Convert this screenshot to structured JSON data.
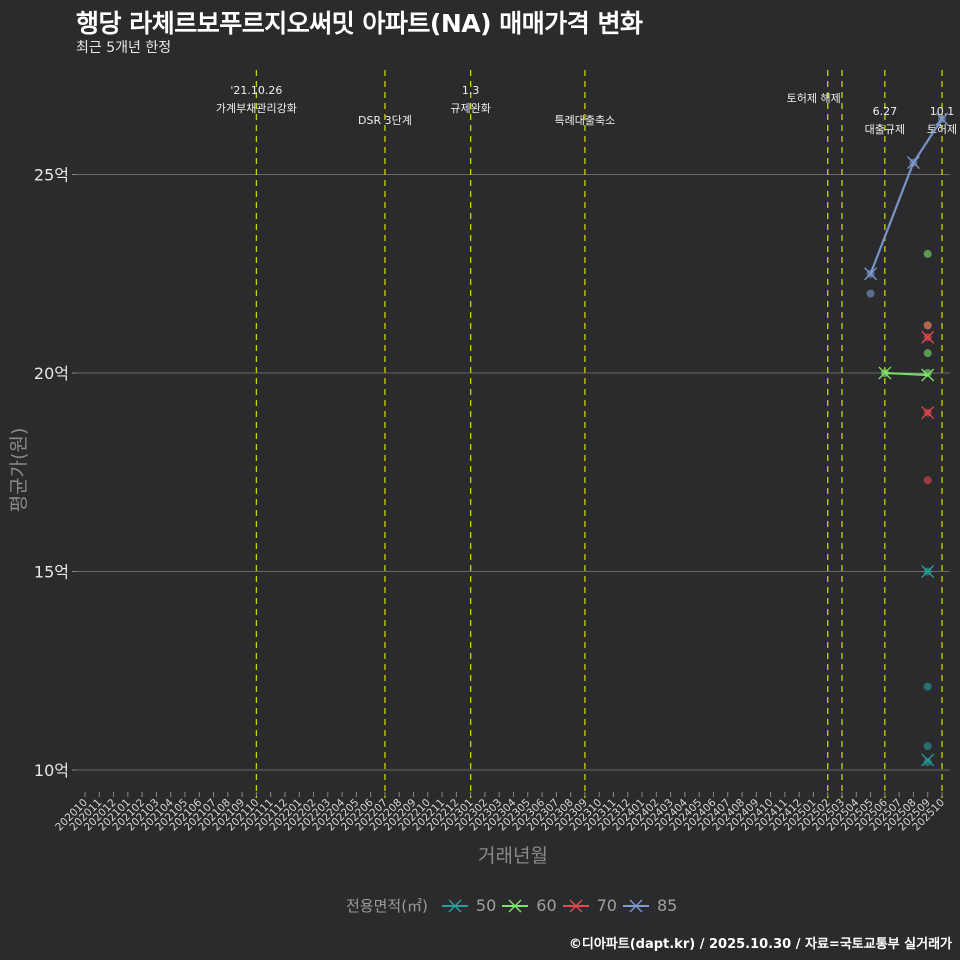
{
  "header": {
    "title": "행당 라체르보푸르지오써밋 아파트(NA) 매매가격 변화",
    "subtitle": "최근 5개년 한정"
  },
  "axes": {
    "ylabel": "평균가(원)",
    "xlabel": "거래년월"
  },
  "legend": {
    "title": "전용면적(㎡)",
    "items": [
      {
        "label": "50",
        "color": "#2a9d9a"
      },
      {
        "label": "60",
        "color": "#7de36a"
      },
      {
        "label": "70",
        "color": "#e8474f"
      },
      {
        "label": "85",
        "color": "#7b9ad0"
      }
    ]
  },
  "footer": {
    "credit": "©디아파트(dapt.kr) / 2025.10.30 / 자료=국토교통부 실거래가"
  },
  "chart_data": {
    "type": "line",
    "title": "행당 라체르보푸르지오써밋 아파트(NA) 매매가격 변화",
    "subtitle": "최근 5개년 한정",
    "xlabel": "거래년월",
    "ylabel": "평균가(원)",
    "ylim": [
      9.4,
      27.0
    ],
    "yticks": [
      10,
      15,
      20,
      25
    ],
    "ytick_labels": [
      "10억",
      "15억",
      "20억",
      "25억"
    ],
    "grid": true,
    "legend_position": "bottom",
    "x": [
      "202010",
      "202011",
      "202012",
      "202101",
      "202102",
      "202103",
      "202104",
      "202105",
      "202106",
      "202107",
      "202108",
      "202109",
      "202110",
      "202111",
      "202112",
      "202201",
      "202202",
      "202203",
      "202204",
      "202205",
      "202206",
      "202207",
      "202208",
      "202209",
      "202210",
      "202211",
      "202212",
      "202301",
      "202302",
      "202303",
      "202304",
      "202305",
      "202306",
      "202307",
      "202308",
      "202309",
      "202310",
      "202311",
      "202312",
      "202401",
      "202402",
      "202403",
      "202404",
      "202405",
      "202406",
      "202407",
      "202408",
      "202409",
      "202410",
      "202411",
      "202412",
      "202501",
      "202502",
      "202503",
      "202504",
      "202505",
      "202506",
      "202507",
      "202508",
      "202509",
      "202510"
    ],
    "series": [
      {
        "name": "50",
        "color": "#2a9d9a",
        "mean": [
          {
            "x": "202509",
            "y": 15.0
          },
          {
            "x": "202509",
            "y": 10.25
          }
        ],
        "points": [
          {
            "x": "202509",
            "y": 15.0
          },
          {
            "x": "202509",
            "y": 12.1
          },
          {
            "x": "202509",
            "y": 10.6
          },
          {
            "x": "202509",
            "y": 10.2
          }
        ]
      },
      {
        "name": "60",
        "color": "#7de36a",
        "mean": [
          {
            "x": "202506",
            "y": 20.0
          },
          {
            "x": "202509",
            "y": 19.95
          }
        ],
        "points": [
          {
            "x": "202506",
            "y": 20.0
          },
          {
            "x": "202509",
            "y": 23.0
          },
          {
            "x": "202509",
            "y": 21.2
          },
          {
            "x": "202509",
            "y": 20.5
          },
          {
            "x": "202509",
            "y": 20.0
          }
        ]
      },
      {
        "name": "70",
        "color": "#e8474f",
        "mean": [
          {
            "x": "202509",
            "y": 20.9
          },
          {
            "x": "202509",
            "y": 19.0
          }
        ],
        "points": [
          {
            "x": "202509",
            "y": 21.2
          },
          {
            "x": "202509",
            "y": 20.9
          },
          {
            "x": "202509",
            "y": 19.0
          },
          {
            "x": "202509",
            "y": 17.3
          }
        ]
      },
      {
        "name": "85",
        "color": "#7b9ad0",
        "mean": [
          {
            "x": "202505",
            "y": 22.5
          },
          {
            "x": "202508",
            "y": 25.3
          },
          {
            "x": "202510",
            "y": 26.4
          }
        ],
        "points": [
          {
            "x": "202505",
            "y": 22.5
          },
          {
            "x": "202505",
            "y": 22.0
          },
          {
            "x": "202508",
            "y": 25.3
          },
          {
            "x": "202510",
            "y": 26.4
          }
        ]
      }
    ],
    "annotations": [
      {
        "x": "202110",
        "line1": "'21.10.26",
        "line2": "가계부채관리강화"
      },
      {
        "x": "202207",
        "line1": "",
        "line2": "DSR 3단계"
      },
      {
        "x": "202301",
        "line1": "1.3",
        "line2": "규제완화"
      },
      {
        "x": "202309",
        "line1": "",
        "line2": "특례대출축소"
      },
      {
        "x": "202502",
        "line1": "토허제 해제",
        "line2": ""
      },
      {
        "x": "202503",
        "line1": "",
        "line2": ""
      },
      {
        "x": "202506",
        "line1": "6.27",
        "line2": "대출규제"
      },
      {
        "x": "202510",
        "line1": "10.1",
        "line2": "토허제"
      }
    ]
  }
}
